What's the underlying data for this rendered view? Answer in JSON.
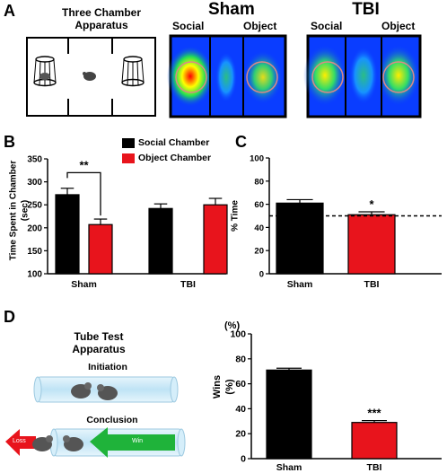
{
  "panels": {
    "a": "A",
    "b": "B",
    "c": "C",
    "d": "D"
  },
  "apparatus_a": {
    "title_line1": "Three Chamber",
    "title_line2": "Apparatus"
  },
  "heatmaps": {
    "sham": {
      "title": "Sham",
      "left": "Social",
      "right": "Object"
    },
    "tbi": {
      "title": "TBI",
      "left": "Social",
      "right": "Object"
    }
  },
  "tube_test": {
    "title_line1": "Tube Test",
    "title_line2": "Apparatus",
    "initiation": "Initiation",
    "conclusion": "Conclusion",
    "loss": "Loss",
    "win": "Win"
  },
  "colors": {
    "social": "#000000",
    "object": "#e8141c",
    "green": "#1fb33a",
    "tube": "#bfe3f5"
  },
  "chart_data": [
    {
      "panel": "B",
      "type": "bar",
      "categories": [
        "Sham",
        "TBI"
      ],
      "series": [
        {
          "name": "Social Chamber",
          "values": [
            272,
            242
          ],
          "errors": [
            14,
            10
          ],
          "color": "#000000"
        },
        {
          "name": "Object Chamber",
          "values": [
            207,
            250
          ],
          "errors": [
            12,
            14
          ],
          "color": "#e8141c"
        }
      ],
      "ylabel_line1": "Time Spent in Chamber",
      "ylabel_line2": "(sec)",
      "ylim": [
        100,
        350
      ],
      "yticks": [
        100,
        150,
        200,
        250,
        300,
        350
      ],
      "annotations": [
        {
          "text": "**",
          "between": [
            "Sham-Social",
            "Sham-Object"
          ]
        }
      ],
      "legend": "top"
    },
    {
      "panel": "C",
      "type": "bar",
      "categories": [
        "Sham",
        "TBI"
      ],
      "values": [
        61,
        51
      ],
      "errors": [
        3,
        2.5
      ],
      "colors": [
        "#000000",
        "#e8141c"
      ],
      "ylabel": "% Time",
      "ylim": [
        0,
        100
      ],
      "yticks": [
        0,
        20,
        40,
        60,
        80,
        100
      ],
      "reference_line": 50,
      "annotations": [
        {
          "text": "*",
          "category": "TBI"
        }
      ]
    },
    {
      "panel": "D",
      "type": "bar",
      "categories": [
        "Sham",
        "TBI"
      ],
      "values": [
        71,
        29
      ],
      "errors": [
        1.5,
        1.5
      ],
      "colors": [
        "#000000",
        "#e8141c"
      ],
      "ylabel_line1": "Wins",
      "ylabel_line2": "(%)",
      "ylim": [
        0,
        100
      ],
      "yticks": [
        0,
        20,
        40,
        60,
        80,
        100
      ],
      "y_top_label": "(%)",
      "annotations": [
        {
          "text": "***",
          "category": "TBI"
        }
      ]
    }
  ]
}
